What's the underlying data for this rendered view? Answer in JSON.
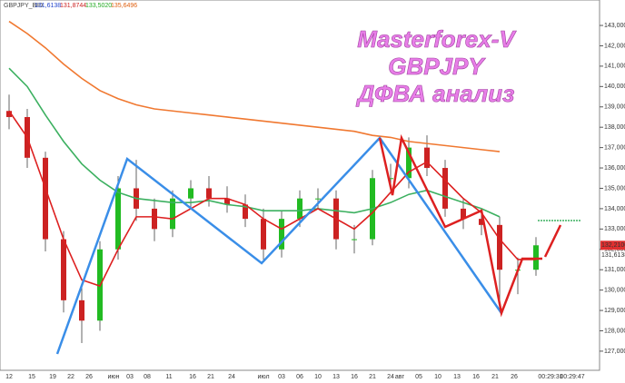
{
  "chart_data": {
    "type": "candlestick",
    "symbol": "GBPJPY_BID",
    "header_values": [
      "131,6138",
      "131,8744",
      "133,5020",
      "135,6496"
    ],
    "header_colors": [
      "#2244cc",
      "#cc2222",
      "#22aa22",
      "#e06010"
    ],
    "title_lines": [
      "Masterforex-V",
      "GBPJPY",
      "ДФВА анализ"
    ],
    "price_labels": [
      "132,2100",
      "131,6138"
    ],
    "open": [
      138.8,
      138.5,
      136.5,
      132.5,
      129.5,
      128.5,
      132,
      135,
      134,
      133,
      134.5,
      135,
      134.5,
      134.2,
      133.5,
      132,
      133.5,
      134.5,
      134.5,
      132.5,
      132.5,
      135.5,
      135.5,
      137,
      136,
      134,
      133.5,
      133.2,
      131,
      131
    ],
    "high": [
      139.6,
      138.9,
      136.8,
      132.9,
      130.2,
      132.4,
      135.6,
      136.4,
      134.5,
      134.9,
      135.4,
      135.6,
      135.1,
      134.7,
      134.0,
      133.9,
      134.9,
      135.0,
      134.9,
      133.2,
      135.9,
      136.2,
      137.5,
      137.6,
      136.4,
      134.5,
      134.0,
      133.6,
      131.6,
      132.6
    ],
    "low": [
      137.9,
      136.0,
      131.9,
      128.9,
      127.4,
      128.0,
      131.5,
      133.4,
      132.4,
      132.6,
      134.0,
      134.1,
      133.8,
      133.1,
      131.5,
      131.6,
      133.1,
      134.0,
      132.0,
      131.8,
      132.2,
      134.9,
      135.0,
      135.6,
      133.6,
      133.0,
      132.7,
      129.0,
      129.8,
      130.7
    ],
    "close": [
      138.5,
      136.5,
      132.5,
      129.5,
      128.5,
      132,
      135,
      134,
      133,
      134.5,
      135,
      134.5,
      134.2,
      133.5,
      132,
      133.5,
      134.5,
      134.5,
      132.5,
      132.5,
      135.5,
      135.5,
      137,
      136,
      134,
      133.5,
      133.2,
      131,
      131,
      132.2
    ],
    "series": [
      {
        "color": "#f07830",
        "values": [
          143.2,
          142.6,
          141.9,
          141.1,
          140.4,
          139.8,
          139.4,
          139.1,
          138.9,
          138.8,
          138.7,
          138.6,
          138.5,
          138.4,
          138.3,
          138.2,
          138.1,
          138.0,
          137.9,
          137.8,
          137.6,
          137.5,
          137.3,
          137.2,
          137.1,
          137.0,
          136.9,
          136.8,
          null,
          null
        ]
      },
      {
        "color": "#3cb060",
        "values": [
          140.9,
          140.0,
          138.6,
          137.3,
          136.2,
          135.4,
          134.8,
          134.5,
          134.4,
          134.3,
          134.3,
          134.4,
          134.2,
          134.1,
          133.9,
          133.9,
          133.9,
          134.0,
          133.9,
          133.8,
          134.0,
          134.3,
          134.7,
          134.9,
          134.6,
          134.3,
          134.0,
          133.6,
          null,
          null
        ]
      },
      {
        "color": "#dd2020",
        "values": [
          138.8,
          137.5,
          135.0,
          132.5,
          130.5,
          130.2,
          132.0,
          133.6,
          133.6,
          133.5,
          134.0,
          134.5,
          134.5,
          134.2,
          133.5,
          133.0,
          133.5,
          134.0,
          133.5,
          133.0,
          133.8,
          134.8,
          135.8,
          136.3,
          135.4,
          134.5,
          133.8,
          132.5,
          131.5,
          131.5
        ]
      }
    ],
    "up_color": "#22bb22",
    "down_color": "#cc2222",
    "ylim": [
      126.06,
      144.25
    ],
    "yticks": [
      {
        "value": 127,
        "label": "127,0000"
      },
      {
        "value": 128,
        "label": "128,0000"
      },
      {
        "value": 129,
        "label": "129,0000"
      },
      {
        "value": 130,
        "label": "130,0000"
      },
      {
        "value": 131,
        "label": "131,0000"
      },
      {
        "value": 132,
        "label": "132,0000"
      },
      {
        "value": 133,
        "label": "133,0000"
      },
      {
        "value": 134,
        "label": "134,0000"
      },
      {
        "value": 135,
        "label": "135,0000"
      },
      {
        "value": 136,
        "label": "136,0000"
      },
      {
        "value": 137,
        "label": "137,0000"
      },
      {
        "value": 138,
        "label": "138,0000"
      },
      {
        "value": 139,
        "label": "139,0000"
      },
      {
        "value": 140,
        "label": "140,0000"
      },
      {
        "value": 141,
        "label": "141,0000"
      },
      {
        "value": 142,
        "label": "142,0000"
      },
      {
        "value": 143,
        "label": "143,0000"
      }
    ],
    "x_labels": [
      "12",
      "15",
      "19",
      "22",
      "26",
      "июн",
      "03",
      "08",
      "11",
      "16",
      "21",
      "24",
      "июл",
      "03",
      "06",
      "10",
      "13",
      "16",
      "21",
      "24",
      "авг",
      "05",
      "10",
      "13",
      "16",
      "21",
      "26",
      "00:29:31",
      "00:29:47"
    ]
  }
}
